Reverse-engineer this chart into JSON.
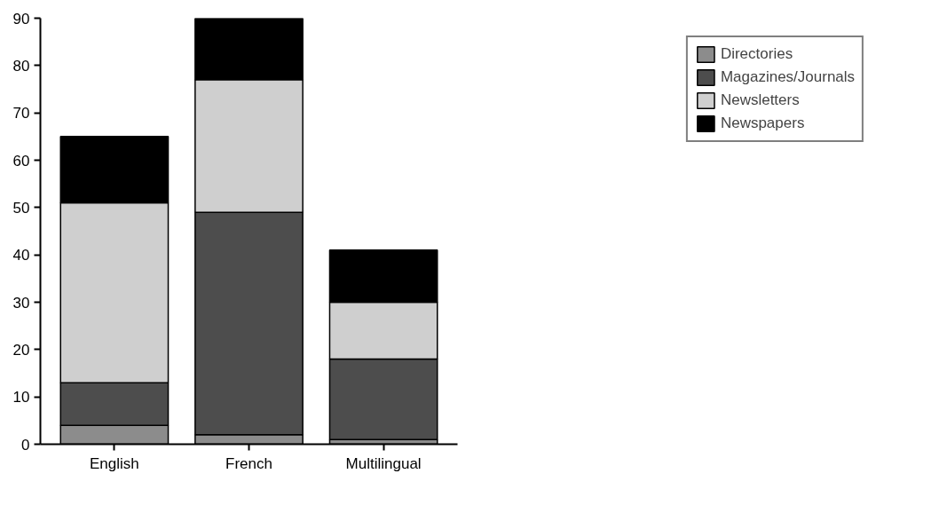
{
  "chart_data": {
    "type": "bar",
    "stacked": true,
    "categories": [
      "English",
      "French",
      "Multilingual"
    ],
    "series": [
      {
        "name": "Directories",
        "color": "#8c8c8c",
        "values": [
          4,
          2,
          1
        ]
      },
      {
        "name": "Magazines/Journals",
        "color": "#4d4d4d",
        "values": [
          9,
          47,
          17
        ]
      },
      {
        "name": "Newsletters",
        "color": "#cfcfcf",
        "values": [
          38,
          28,
          12
        ]
      },
      {
        "name": "Newspapers",
        "color": "#000000",
        "values": [
          14,
          13,
          11
        ]
      }
    ],
    "ylim": [
      0,
      90
    ],
    "yticks": [
      0,
      10,
      20,
      30,
      40,
      50,
      60,
      70,
      80,
      90
    ],
    "grid": false,
    "legend": "top right"
  }
}
